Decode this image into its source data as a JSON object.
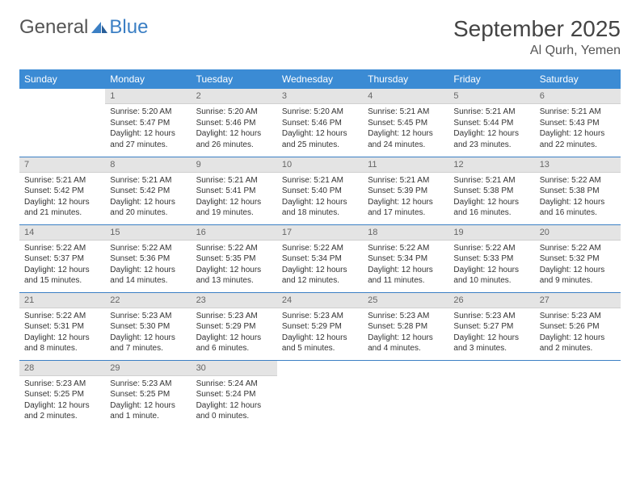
{
  "logo": {
    "text1": "General",
    "text2": "Blue"
  },
  "title": "September 2025",
  "location": "Al Qurh, Yemen",
  "colors": {
    "header_bg": "#3b8bd4",
    "accent": "#3b7fc4",
    "daynum_bg": "#e4e4e4"
  },
  "weekdays": [
    "Sunday",
    "Monday",
    "Tuesday",
    "Wednesday",
    "Thursday",
    "Friday",
    "Saturday"
  ],
  "weeks": [
    [
      null,
      {
        "n": "1",
        "sr": "5:20 AM",
        "ss": "5:47 PM",
        "dl": "12 hours and 27 minutes."
      },
      {
        "n": "2",
        "sr": "5:20 AM",
        "ss": "5:46 PM",
        "dl": "12 hours and 26 minutes."
      },
      {
        "n": "3",
        "sr": "5:20 AM",
        "ss": "5:46 PM",
        "dl": "12 hours and 25 minutes."
      },
      {
        "n": "4",
        "sr": "5:21 AM",
        "ss": "5:45 PM",
        "dl": "12 hours and 24 minutes."
      },
      {
        "n": "5",
        "sr": "5:21 AM",
        "ss": "5:44 PM",
        "dl": "12 hours and 23 minutes."
      },
      {
        "n": "6",
        "sr": "5:21 AM",
        "ss": "5:43 PM",
        "dl": "12 hours and 22 minutes."
      }
    ],
    [
      {
        "n": "7",
        "sr": "5:21 AM",
        "ss": "5:42 PM",
        "dl": "12 hours and 21 minutes."
      },
      {
        "n": "8",
        "sr": "5:21 AM",
        "ss": "5:42 PM",
        "dl": "12 hours and 20 minutes."
      },
      {
        "n": "9",
        "sr": "5:21 AM",
        "ss": "5:41 PM",
        "dl": "12 hours and 19 minutes."
      },
      {
        "n": "10",
        "sr": "5:21 AM",
        "ss": "5:40 PM",
        "dl": "12 hours and 18 minutes."
      },
      {
        "n": "11",
        "sr": "5:21 AM",
        "ss": "5:39 PM",
        "dl": "12 hours and 17 minutes."
      },
      {
        "n": "12",
        "sr": "5:21 AM",
        "ss": "5:38 PM",
        "dl": "12 hours and 16 minutes."
      },
      {
        "n": "13",
        "sr": "5:22 AM",
        "ss": "5:38 PM",
        "dl": "12 hours and 16 minutes."
      }
    ],
    [
      {
        "n": "14",
        "sr": "5:22 AM",
        "ss": "5:37 PM",
        "dl": "12 hours and 15 minutes."
      },
      {
        "n": "15",
        "sr": "5:22 AM",
        "ss": "5:36 PM",
        "dl": "12 hours and 14 minutes."
      },
      {
        "n": "16",
        "sr": "5:22 AM",
        "ss": "5:35 PM",
        "dl": "12 hours and 13 minutes."
      },
      {
        "n": "17",
        "sr": "5:22 AM",
        "ss": "5:34 PM",
        "dl": "12 hours and 12 minutes."
      },
      {
        "n": "18",
        "sr": "5:22 AM",
        "ss": "5:34 PM",
        "dl": "12 hours and 11 minutes."
      },
      {
        "n": "19",
        "sr": "5:22 AM",
        "ss": "5:33 PM",
        "dl": "12 hours and 10 minutes."
      },
      {
        "n": "20",
        "sr": "5:22 AM",
        "ss": "5:32 PM",
        "dl": "12 hours and 9 minutes."
      }
    ],
    [
      {
        "n": "21",
        "sr": "5:22 AM",
        "ss": "5:31 PM",
        "dl": "12 hours and 8 minutes."
      },
      {
        "n": "22",
        "sr": "5:23 AM",
        "ss": "5:30 PM",
        "dl": "12 hours and 7 minutes."
      },
      {
        "n": "23",
        "sr": "5:23 AM",
        "ss": "5:29 PM",
        "dl": "12 hours and 6 minutes."
      },
      {
        "n": "24",
        "sr": "5:23 AM",
        "ss": "5:29 PM",
        "dl": "12 hours and 5 minutes."
      },
      {
        "n": "25",
        "sr": "5:23 AM",
        "ss": "5:28 PM",
        "dl": "12 hours and 4 minutes."
      },
      {
        "n": "26",
        "sr": "5:23 AM",
        "ss": "5:27 PM",
        "dl": "12 hours and 3 minutes."
      },
      {
        "n": "27",
        "sr": "5:23 AM",
        "ss": "5:26 PM",
        "dl": "12 hours and 2 minutes."
      }
    ],
    [
      {
        "n": "28",
        "sr": "5:23 AM",
        "ss": "5:25 PM",
        "dl": "12 hours and 2 minutes."
      },
      {
        "n": "29",
        "sr": "5:23 AM",
        "ss": "5:25 PM",
        "dl": "12 hours and 1 minute."
      },
      {
        "n": "30",
        "sr": "5:24 AM",
        "ss": "5:24 PM",
        "dl": "12 hours and 0 minutes."
      },
      null,
      null,
      null,
      null
    ]
  ],
  "labels": {
    "sunrise": "Sunrise:",
    "sunset": "Sunset:",
    "daylight": "Daylight:"
  }
}
